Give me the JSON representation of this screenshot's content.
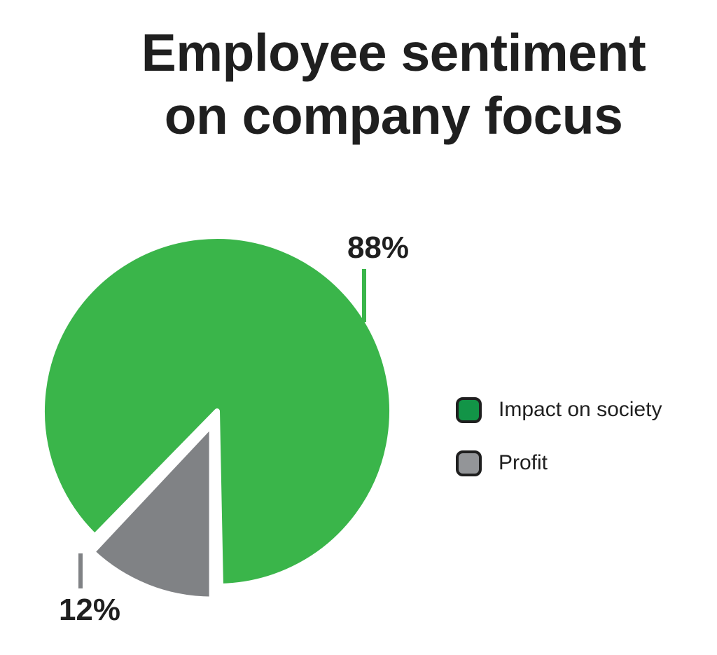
{
  "chart_data": {
    "type": "pie",
    "title": [
      "Employee sentiment",
      "on company focus"
    ],
    "categories": [
      "Impact on society",
      "Profit"
    ],
    "values": [
      88,
      12
    ],
    "unit": "%",
    "data_labels": [
      "88%",
      "12%"
    ],
    "colors": [
      "#3ab54a",
      "#808285"
    ],
    "legend_colors": [
      "#129447",
      "#939598"
    ],
    "legend_position": "right",
    "exploded": [
      "Profit"
    ]
  }
}
